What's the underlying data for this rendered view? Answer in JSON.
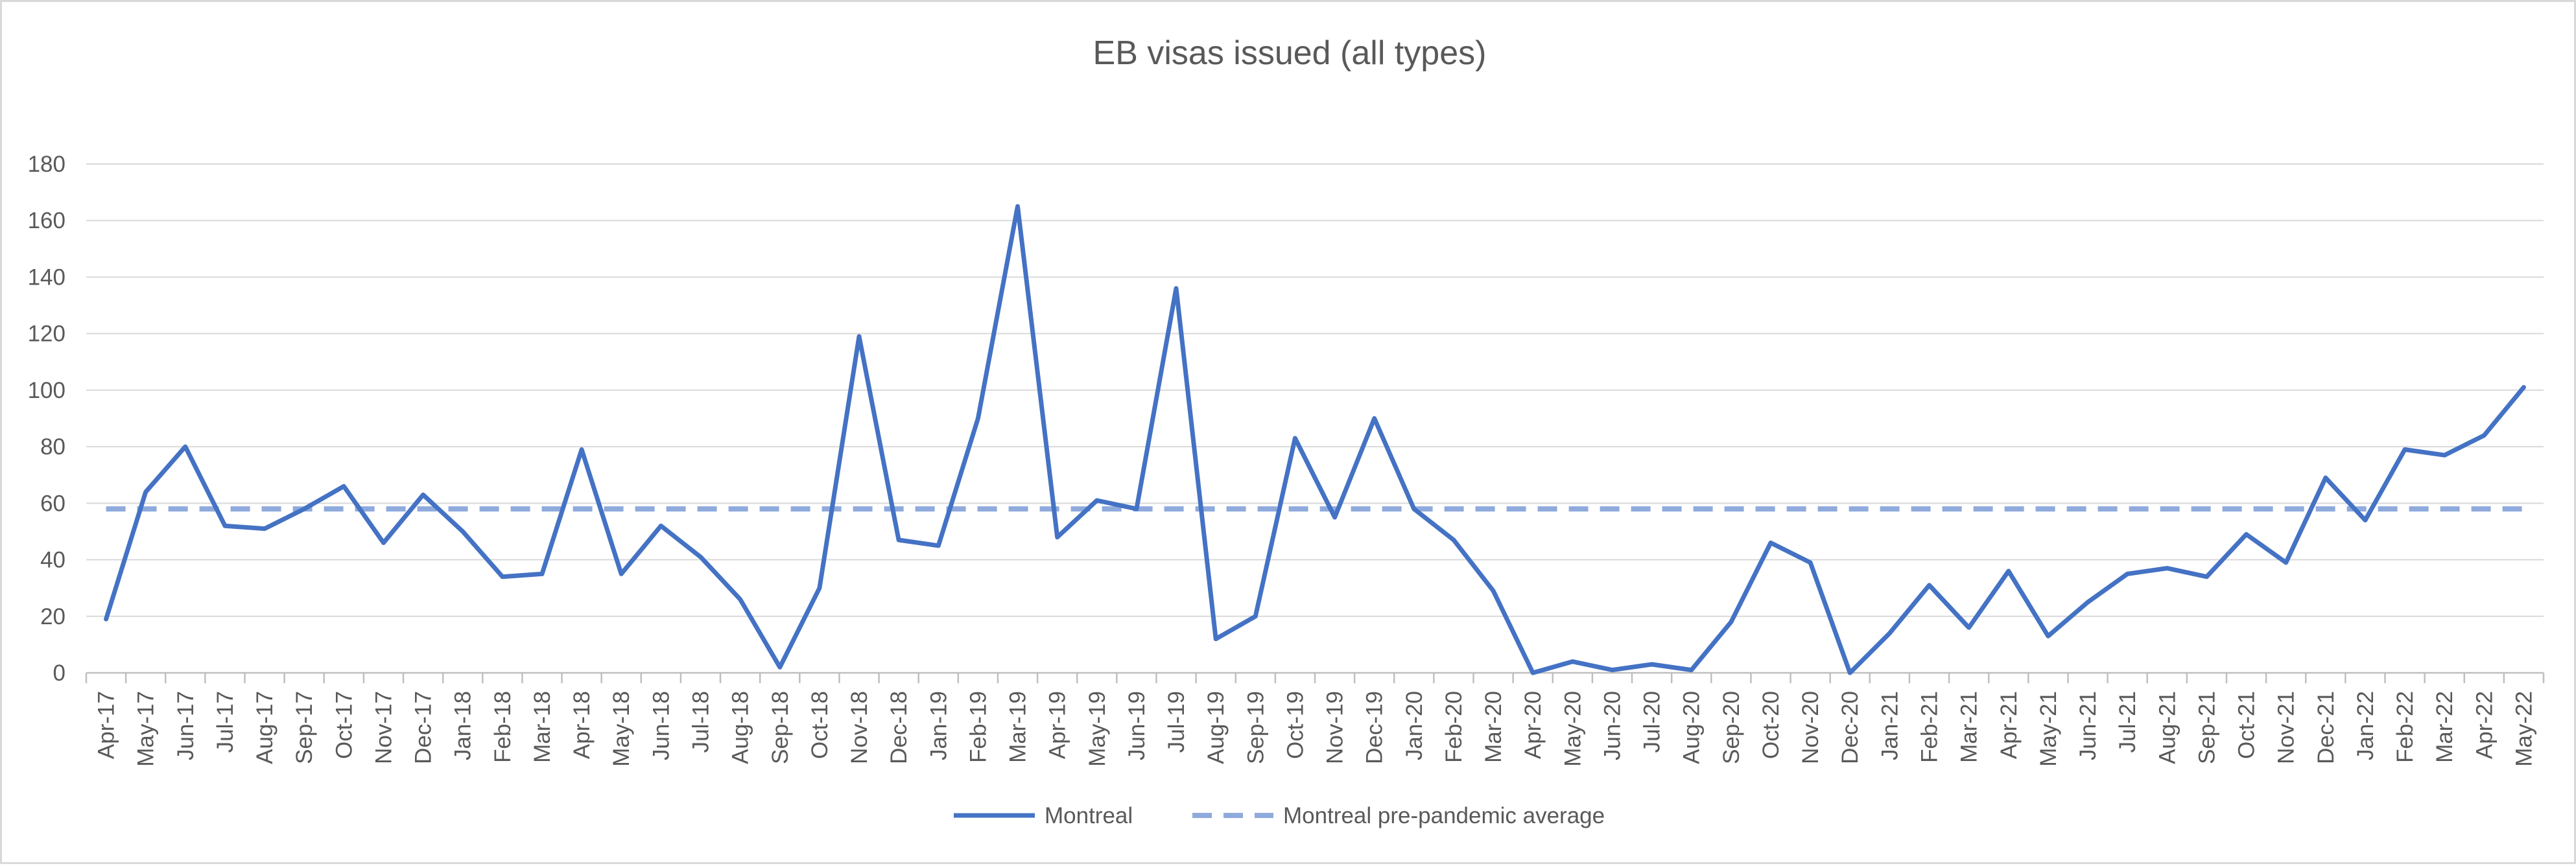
{
  "chart_data": {
    "type": "line",
    "title": "EB visas issued (all types)",
    "xlabel": "",
    "ylabel": "",
    "ylim": [
      0,
      180
    ],
    "yticks": [
      0,
      20,
      40,
      60,
      80,
      100,
      120,
      140,
      160,
      180
    ],
    "grid": true,
    "legend_position": "bottom-center",
    "categories": [
      "Apr-17",
      "May-17",
      "Jun-17",
      "Jul-17",
      "Aug-17",
      "Sep-17",
      "Oct-17",
      "Nov-17",
      "Dec-17",
      "Jan-18",
      "Feb-18",
      "Mar-18",
      "Apr-18",
      "May-18",
      "Jun-18",
      "Jul-18",
      "Aug-18",
      "Sep-18",
      "Oct-18",
      "Nov-18",
      "Dec-18",
      "Jan-19",
      "Feb-19",
      "Mar-19",
      "Apr-19",
      "May-19",
      "Jun-19",
      "Jul-19",
      "Aug-19",
      "Sep-19",
      "Oct-19",
      "Nov-19",
      "Dec-19",
      "Jan-20",
      "Feb-20",
      "Mar-20",
      "Apr-20",
      "May-20",
      "Jun-20",
      "Jul-20",
      "Aug-20",
      "Sep-20",
      "Oct-20",
      "Nov-20",
      "Dec-20",
      "Jan-21",
      "Feb-21",
      "Mar-21",
      "Apr-21",
      "May-21",
      "Jun-21",
      "Jul-21",
      "Aug-21",
      "Sep-21",
      "Oct-21",
      "Nov-21",
      "Dec-21",
      "Jan-22",
      "Feb-22",
      "Mar-22",
      "Apr-22",
      "May-22"
    ],
    "series": [
      {
        "name": "Montreal",
        "color": "#4472c4",
        "style": "solid",
        "values": [
          19,
          64,
          80,
          52,
          51,
          58,
          66,
          46,
          63,
          50,
          34,
          35,
          79,
          35,
          52,
          41,
          26,
          2,
          30,
          119,
          47,
          45,
          90,
          165,
          48,
          61,
          58,
          136,
          12,
          20,
          83,
          55,
          90,
          58,
          47,
          29,
          0,
          4,
          1,
          3,
          1,
          18,
          46,
          39,
          0,
          14,
          31,
          16,
          36,
          13,
          25,
          35,
          37,
          34,
          49,
          39,
          69,
          54,
          79,
          77,
          84,
          101
        ]
      },
      {
        "name": "Montreal pre-pandemic average",
        "color": "#8faadc",
        "style": "dashed",
        "values": [
          58,
          58,
          58,
          58,
          58,
          58,
          58,
          58,
          58,
          58,
          58,
          58,
          58,
          58,
          58,
          58,
          58,
          58,
          58,
          58,
          58,
          58,
          58,
          58,
          58,
          58,
          58,
          58,
          58,
          58,
          58,
          58,
          58,
          58,
          58,
          58,
          58,
          58,
          58,
          58,
          58,
          58,
          58,
          58,
          58,
          58,
          58,
          58,
          58,
          58,
          58,
          58,
          58,
          58,
          58,
          58,
          58,
          58,
          58,
          58,
          58,
          58
        ]
      }
    ]
  }
}
